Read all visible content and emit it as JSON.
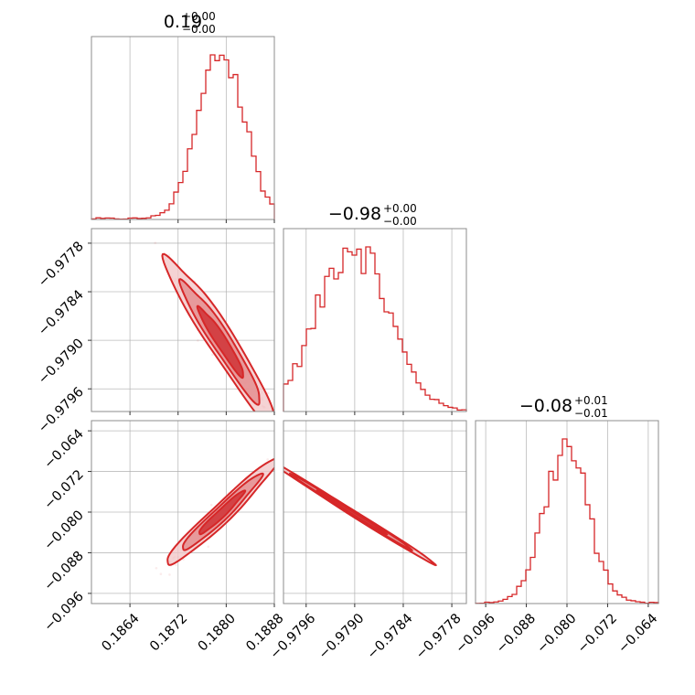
{
  "chart_data": {
    "type": "corner",
    "color": "#d62728",
    "parameters": [
      {
        "title_value": "0.19",
        "title_upper": "+0.00",
        "title_lower": "−0.00",
        "mean": 0.18792,
        "sd": 0.00038,
        "range": [
          0.18576,
          0.1888
        ],
        "ticks": [
          0.1864,
          0.1872,
          0.188,
          0.1888
        ],
        "tick_labels": [
          "0.1864",
          "0.1872",
          "0.1880",
          "0.1888"
        ]
      },
      {
        "title_value": "−0.98",
        "title_upper": "+0.00",
        "title_lower": "−0.00",
        "mean": -0.97902,
        "sd": 0.00043,
        "range": [
          -0.97988,
          -0.97762
        ],
        "ticks": [
          -0.9796,
          -0.979,
          -0.9784,
          -0.9778
        ],
        "tick_labels": [
          "−0.9796",
          "−0.9790",
          "−0.9784",
          "−0.9778"
        ]
      },
      {
        "title_value": "−0.08",
        "title_upper": "+0.01",
        "title_lower": "−0.01",
        "mean": -0.0802,
        "sd": 0.0043,
        "range": [
          -0.098,
          -0.062
        ],
        "ticks": [
          -0.096,
          -0.088,
          -0.08,
          -0.072,
          -0.064
        ],
        "tick_labels": [
          "−0.096",
          "−0.088",
          "−0.080",
          "−0.072",
          "−0.064"
        ]
      }
    ],
    "correlations": {
      "p0_p1": -0.96,
      "p0_p2": 0.97,
      "p1_p2": -0.998
    },
    "histogram_bins": 40,
    "grid": true,
    "contour_levels": 3
  }
}
